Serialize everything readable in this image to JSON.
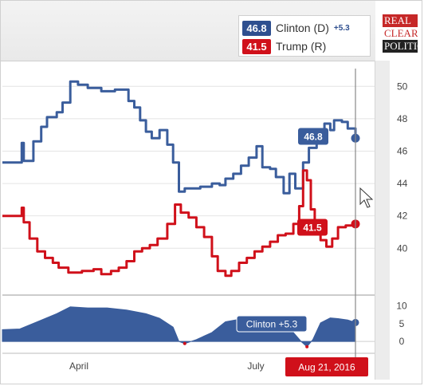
{
  "legend": {
    "items": [
      {
        "value": "46.8",
        "name": "Clinton (D)",
        "spread": "+5.3",
        "color": "#2e4f8f"
      },
      {
        "value": "41.5",
        "name": "Trump (R)",
        "spread": "",
        "color": "#d0101a"
      }
    ]
  },
  "logo": {
    "line1": "REAL",
    "line2": "CLEAR",
    "line3": "POLITICS"
  },
  "colors": {
    "clinton": "#3a5d9c",
    "trump": "#d0101a",
    "spread_fill": "#3a5d9c"
  },
  "chart_data": [
    {
      "type": "line",
      "title": "",
      "x_start": "2016-02-21",
      "x_end": "2016-08-21",
      "x_ticks": [
        "April",
        "July"
      ],
      "ylim": [
        37.5,
        51
      ],
      "y_ticks": [
        40,
        42,
        44,
        46,
        48,
        50
      ],
      "grid": true,
      "legend_position": "top-right",
      "series": [
        {
          "name": "Clinton (D)",
          "points": [
            [
              "2016-02-21",
              45.3
            ],
            [
              "2016-03-01",
              45.3
            ],
            [
              "2016-03-02",
              46.5
            ],
            [
              "2016-03-03",
              45.4
            ],
            [
              "2016-03-08",
              46.6
            ],
            [
              "2016-03-12",
              47.5
            ],
            [
              "2016-03-15",
              48.1
            ],
            [
              "2016-03-20",
              48.4
            ],
            [
              "2016-03-23",
              49.0
            ],
            [
              "2016-03-27",
              50.3
            ],
            [
              "2016-03-31",
              50.1
            ],
            [
              "2016-04-05",
              49.9
            ],
            [
              "2016-04-12",
              49.7
            ],
            [
              "2016-04-19",
              49.8
            ],
            [
              "2016-04-26",
              49.1
            ],
            [
              "2016-04-29",
              48.7
            ],
            [
              "2016-05-02",
              47.9
            ],
            [
              "2016-05-05",
              47.2
            ],
            [
              "2016-05-08",
              46.8
            ],
            [
              "2016-05-12",
              47.3
            ],
            [
              "2016-05-16",
              46.4
            ],
            [
              "2016-05-19",
              45.3
            ],
            [
              "2016-05-22",
              43.5
            ],
            [
              "2016-05-25",
              43.7
            ],
            [
              "2016-06-02",
              43.8
            ],
            [
              "2016-06-08",
              44.0
            ],
            [
              "2016-06-12",
              43.9
            ],
            [
              "2016-06-15",
              44.3
            ],
            [
              "2016-06-19",
              44.6
            ],
            [
              "2016-06-23",
              45.1
            ],
            [
              "2016-06-27",
              45.6
            ],
            [
              "2016-07-01",
              46.3
            ],
            [
              "2016-07-04",
              45.0
            ],
            [
              "2016-07-08",
              44.9
            ],
            [
              "2016-07-11",
              44.4
            ],
            [
              "2016-07-15",
              43.4
            ],
            [
              "2016-07-18",
              44.6
            ],
            [
              "2016-07-21",
              43.7
            ],
            [
              "2016-07-25",
              45.3
            ],
            [
              "2016-07-28",
              46.2
            ],
            [
              "2016-08-01",
              46.8
            ],
            [
              "2016-08-05",
              47.7
            ],
            [
              "2016-08-08",
              47.3
            ],
            [
              "2016-08-10",
              47.9
            ],
            [
              "2016-08-14",
              47.8
            ],
            [
              "2016-08-17",
              47.4
            ],
            [
              "2016-08-21",
              46.8
            ]
          ]
        },
        {
          "name": "Trump (R)",
          "points": [
            [
              "2016-02-21",
              42.0
            ],
            [
              "2016-03-01",
              42.0
            ],
            [
              "2016-03-02",
              42.5
            ],
            [
              "2016-03-03",
              41.6
            ],
            [
              "2016-03-06",
              40.6
            ],
            [
              "2016-03-10",
              39.8
            ],
            [
              "2016-03-14",
              39.4
            ],
            [
              "2016-03-18",
              39.1
            ],
            [
              "2016-03-21",
              38.8
            ],
            [
              "2016-03-26",
              38.5
            ],
            [
              "2016-04-02",
              38.6
            ],
            [
              "2016-04-08",
              38.7
            ],
            [
              "2016-04-12",
              38.4
            ],
            [
              "2016-04-17",
              38.6
            ],
            [
              "2016-04-21",
              38.8
            ],
            [
              "2016-04-25",
              39.2
            ],
            [
              "2016-04-29",
              39.8
            ],
            [
              "2016-05-03",
              40.0
            ],
            [
              "2016-05-07",
              40.2
            ],
            [
              "2016-05-11",
              40.6
            ],
            [
              "2016-05-16",
              41.5
            ],
            [
              "2016-05-20",
              42.7
            ],
            [
              "2016-05-23",
              42.2
            ],
            [
              "2016-05-27",
              41.9
            ],
            [
              "2016-05-31",
              41.3
            ],
            [
              "2016-06-04",
              40.7
            ],
            [
              "2016-06-08",
              39.5
            ],
            [
              "2016-06-11",
              38.6
            ],
            [
              "2016-06-15",
              38.3
            ],
            [
              "2016-06-18",
              38.6
            ],
            [
              "2016-06-22",
              39.1
            ],
            [
              "2016-06-26",
              39.4
            ],
            [
              "2016-06-30",
              39.8
            ],
            [
              "2016-07-04",
              40.1
            ],
            [
              "2016-07-08",
              40.4
            ],
            [
              "2016-07-12",
              40.8
            ],
            [
              "2016-07-16",
              40.9
            ],
            [
              "2016-07-20",
              41.5
            ],
            [
              "2016-07-23",
              42.6
            ],
            [
              "2016-07-25",
              44.8
            ],
            [
              "2016-07-27",
              44.2
            ],
            [
              "2016-07-29",
              42.4
            ],
            [
              "2016-07-31",
              41.2
            ],
            [
              "2016-08-03",
              40.5
            ],
            [
              "2016-08-06",
              40.1
            ],
            [
              "2016-08-09",
              40.6
            ],
            [
              "2016-08-12",
              41.3
            ],
            [
              "2016-08-16",
              41.4
            ],
            [
              "2016-08-21",
              41.5
            ]
          ]
        }
      ]
    },
    {
      "type": "area",
      "title": "",
      "x_start": "2016-02-21",
      "x_end": "2016-08-21",
      "ylim": [
        -2,
        11
      ],
      "y_ticks": [
        0,
        5,
        10
      ],
      "series": [
        {
          "name": "Clinton +5.3",
          "points": [
            [
              "2016-02-21",
              3.3
            ],
            [
              "2016-03-01",
              3.5
            ],
            [
              "2016-03-10",
              5.5
            ],
            [
              "2016-03-20",
              7.8
            ],
            [
              "2016-03-27",
              9.7
            ],
            [
              "2016-04-05",
              9.4
            ],
            [
              "2016-04-15",
              9.4
            ],
            [
              "2016-04-25",
              8.8
            ],
            [
              "2016-05-05",
              7.8
            ],
            [
              "2016-05-12",
              6.5
            ],
            [
              "2016-05-19",
              4.0
            ],
            [
              "2016-05-22",
              0.0
            ],
            [
              "2016-05-25",
              -0.6
            ],
            [
              "2016-05-31",
              0.5
            ],
            [
              "2016-06-08",
              2.5
            ],
            [
              "2016-06-15",
              5.5
            ],
            [
              "2016-06-22",
              6.2
            ],
            [
              "2016-06-29",
              5.9
            ],
            [
              "2016-07-06",
              5.0
            ],
            [
              "2016-07-13",
              3.5
            ],
            [
              "2016-07-20",
              2.5
            ],
            [
              "2016-07-24",
              0.0
            ],
            [
              "2016-07-27",
              -1.5
            ],
            [
              "2016-07-30",
              0.5
            ],
            [
              "2016-08-03",
              5.2
            ],
            [
              "2016-08-08",
              6.6
            ],
            [
              "2016-08-12",
              6.4
            ],
            [
              "2016-08-17",
              6.0
            ],
            [
              "2016-08-21",
              5.3
            ]
          ]
        }
      ]
    }
  ],
  "flags": {
    "clinton_label": "46.8",
    "trump_label": "41.5",
    "spread_label": "Clinton +5.3",
    "date_label": "Aug 21, 2016"
  }
}
